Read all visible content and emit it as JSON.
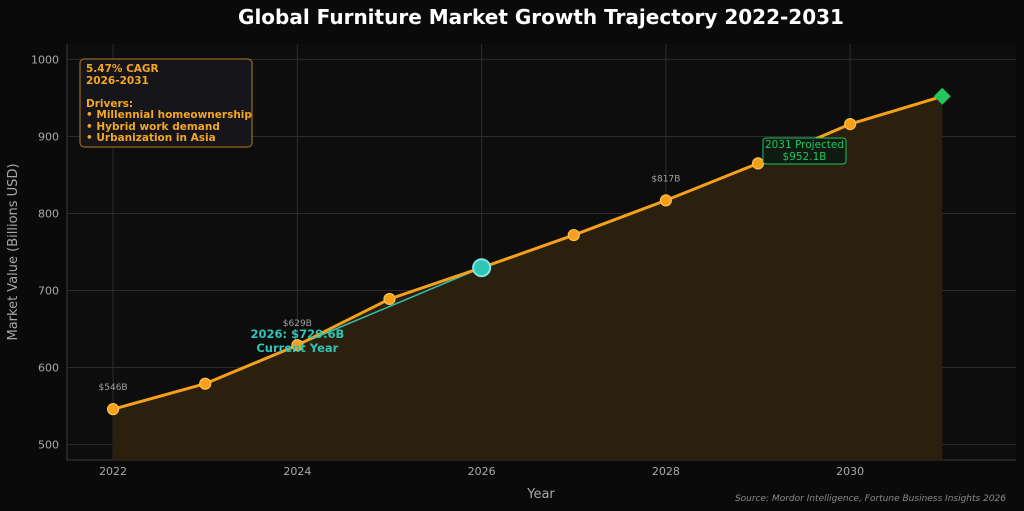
{
  "chart_data": {
    "type": "line",
    "title": "Global Furniture Market Growth Trajectory 2022-2031",
    "xlabel": "Year",
    "ylabel": "Market Value (Billions USD)",
    "xlim": [
      2021.5,
      2031.8
    ],
    "ylim": [
      480,
      1020
    ],
    "x_ticks": [
      2022,
      2024,
      2026,
      2028,
      2030
    ],
    "y_ticks": [
      500,
      600,
      700,
      800,
      900,
      1000
    ],
    "grid": true,
    "series": [
      {
        "x": [
          2022,
          2023,
          2024,
          2025,
          2026,
          2027,
          2028,
          2029,
          2030,
          2031
        ],
        "values": [
          546,
          579,
          629,
          689,
          729.6,
          772,
          817,
          865,
          916,
          952.1
        ],
        "color": "#f5a01a"
      }
    ],
    "point_labels": [
      {
        "x": 2022,
        "y": 546,
        "text": "$546B"
      },
      {
        "x": 2024,
        "y": 629,
        "text": "$629B"
      },
      {
        "x": 2028,
        "y": 817,
        "text": "$817B"
      }
    ],
    "highlights": {
      "current": {
        "x": 2026,
        "y": 729.6,
        "line1": "2026: $729.6B",
        "line2": "Current Year",
        "color": "#2ec4b6"
      },
      "projected": {
        "x": 2031,
        "y": 952.1,
        "line1": "2031 Projected",
        "line2": "$952.1B",
        "color": "#22c55e"
      }
    },
    "drivers_box": {
      "lines": [
        "5.47% CAGR",
        "2026-2031",
        "",
        "Drivers:",
        "• Millennial homeownership",
        "• Hybrid work demand",
        "• Urbanization in Asia"
      ],
      "color": "#f5a623"
    },
    "source": "Source: Mordor Intelligence, Fortune Business Insights 2026"
  }
}
